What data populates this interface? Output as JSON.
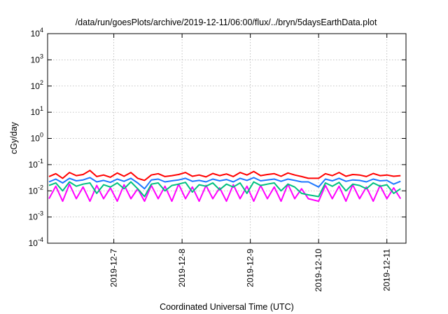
{
  "chart_data": {
    "type": "line",
    "title": "/data/run/goesPlots/archive/2019-12-11/06:00/flux/../bryn/5daysEarthData.plot",
    "xlabel": "Coordinated Universal Time (UTC)",
    "ylabel": "cGy/day",
    "yscale": "log",
    "ylim": [
      0.0001,
      10000
    ],
    "y_ticks": [
      {
        "base": "10",
        "exp": "-4",
        "value": 0.0001
      },
      {
        "base": "10",
        "exp": "-3",
        "value": 0.001
      },
      {
        "base": "10",
        "exp": "-2",
        "value": 0.01
      },
      {
        "base": "10",
        "exp": "-1",
        "value": 0.1
      },
      {
        "base": "10",
        "exp": "0",
        "value": 1
      },
      {
        "base": "10",
        "exp": "1",
        "value": 10
      },
      {
        "base": "10",
        "exp": "2",
        "value": 100
      },
      {
        "base": "10",
        "exp": "3",
        "value": 1000
      },
      {
        "base": "10",
        "exp": "4",
        "value": 10000
      }
    ],
    "x_units": "days since 2019-12-6 00:00 UTC",
    "xlim": [
      0.03,
      5.28
    ],
    "x_ticks": [
      {
        "label": "2019-12-7",
        "value": 1
      },
      {
        "label": "2019-12-8",
        "value": 2
      },
      {
        "label": "2019-12-9",
        "value": 3
      },
      {
        "label": "2019-12-10",
        "value": 4
      },
      {
        "label": "2019-12-11",
        "value": 5
      }
    ],
    "grid": true,
    "x": [
      0.05,
      0.15,
      0.25,
      0.35,
      0.45,
      0.55,
      0.65,
      0.75,
      0.85,
      0.95,
      1.05,
      1.15,
      1.25,
      1.35,
      1.45,
      1.55,
      1.65,
      1.75,
      1.85,
      1.95,
      2.05,
      2.15,
      2.25,
      2.35,
      2.45,
      2.55,
      2.65,
      2.75,
      2.85,
      2.95,
      3.05,
      3.15,
      3.25,
      3.35,
      3.45,
      3.55,
      3.65,
      3.75,
      3.85,
      4.0,
      4.1,
      4.2,
      4.3,
      4.4,
      4.5,
      4.6,
      4.7,
      4.8,
      4.9,
      5.0,
      5.1,
      5.2
    ],
    "series": [
      {
        "name": "magenta",
        "color": "#ff00ff",
        "values": [
          0.005,
          0.015,
          0.004,
          0.018,
          0.005,
          0.014,
          0.004,
          0.016,
          0.005,
          0.013,
          0.004,
          0.017,
          0.005,
          0.012,
          0.004,
          0.016,
          0.005,
          0.015,
          0.004,
          0.018,
          0.005,
          0.014,
          0.004,
          0.016,
          0.005,
          0.013,
          0.004,
          0.017,
          0.005,
          0.015,
          0.004,
          0.016,
          0.005,
          0.014,
          0.004,
          0.018,
          0.005,
          0.012,
          0.005,
          0.004,
          0.016,
          0.005,
          0.015,
          0.004,
          0.017,
          0.005,
          0.014,
          0.004,
          0.016,
          0.005,
          0.013,
          0.005
        ]
      },
      {
        "name": "green",
        "color": "#00c080",
        "values": [
          0.016,
          0.02,
          0.01,
          0.022,
          0.015,
          0.018,
          0.02,
          0.008,
          0.017,
          0.014,
          0.02,
          0.012,
          0.022,
          0.012,
          0.006,
          0.018,
          0.02,
          0.01,
          0.016,
          0.018,
          0.021,
          0.009,
          0.017,
          0.015,
          0.02,
          0.011,
          0.018,
          0.014,
          0.02,
          0.008,
          0.022,
          0.016,
          0.018,
          0.02,
          0.01,
          0.018,
          0.014,
          0.008,
          0.007,
          0.006,
          0.02,
          0.015,
          0.021,
          0.01,
          0.018,
          0.016,
          0.012,
          0.02,
          0.015,
          0.017,
          0.008,
          0.012
        ]
      },
      {
        "name": "red",
        "color": "#ff0000",
        "values": [
          0.035,
          0.045,
          0.03,
          0.05,
          0.038,
          0.042,
          0.06,
          0.035,
          0.04,
          0.033,
          0.048,
          0.036,
          0.05,
          0.03,
          0.025,
          0.04,
          0.045,
          0.035,
          0.038,
          0.042,
          0.05,
          0.036,
          0.04,
          0.034,
          0.046,
          0.038,
          0.044,
          0.035,
          0.05,
          0.04,
          0.055,
          0.038,
          0.042,
          0.045,
          0.036,
          0.048,
          0.04,
          0.035,
          0.03,
          0.03,
          0.045,
          0.038,
          0.05,
          0.036,
          0.042,
          0.04,
          0.035,
          0.046,
          0.038,
          0.04,
          0.036,
          0.038
        ]
      },
      {
        "name": "blue",
        "color": "#1e78ff",
        "values": [
          0.022,
          0.028,
          0.02,
          0.03,
          0.024,
          0.026,
          0.032,
          0.022,
          0.025,
          0.021,
          0.028,
          0.023,
          0.03,
          0.02,
          0.012,
          0.026,
          0.028,
          0.022,
          0.024,
          0.026,
          0.03,
          0.023,
          0.025,
          0.022,
          0.028,
          0.024,
          0.027,
          0.022,
          0.03,
          0.025,
          0.032,
          0.024,
          0.026,
          0.028,
          0.023,
          0.028,
          0.025,
          0.022,
          0.022,
          0.014,
          0.028,
          0.024,
          0.03,
          0.023,
          0.026,
          0.025,
          0.022,
          0.028,
          0.024,
          0.025,
          0.018,
          0.023
        ]
      }
    ]
  }
}
